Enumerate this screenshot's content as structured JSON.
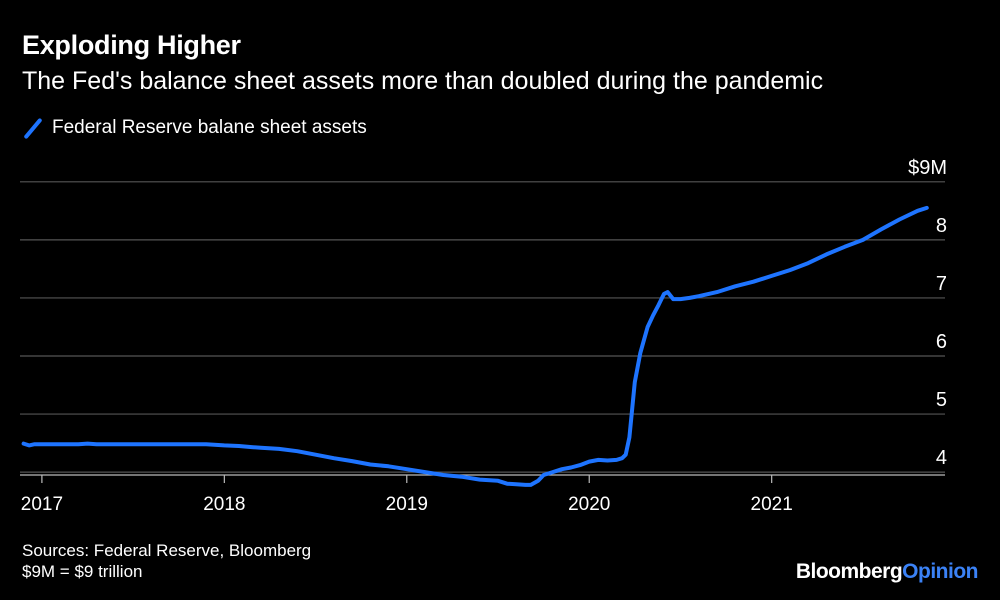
{
  "header": {
    "title": "Exploding Higher",
    "subtitle": "The Fed's balance sheet assets more than doubled during the pandemic"
  },
  "legend": {
    "label": "Federal Reserve balane sheet assets"
  },
  "footer": {
    "sources": "Sources: Federal Reserve, Bloomberg",
    "note": "$9M = $9 trillion"
  },
  "brand": {
    "name": "Bloomberg",
    "accent": "Opinion",
    "accent_color": "#3b82f6"
  },
  "colors": {
    "series": "#1e74ff",
    "grid": "#555555",
    "background": "#000000"
  },
  "chart_data": {
    "type": "line",
    "title": "Exploding Higher",
    "subtitle": "The Fed's balance sheet assets more than doubled during the pandemic",
    "xlabel": "",
    "ylabel": "",
    "xlim": [
      2016.88,
      2021.95
    ],
    "ylim": [
      3.95,
      9.1
    ],
    "x_ticks": [
      2017,
      2018,
      2019,
      2020,
      2021
    ],
    "x_tick_labels": [
      "2017",
      "2018",
      "2019",
      "2020",
      "2021"
    ],
    "y_ticks": [
      4,
      5,
      6,
      7,
      8,
      9
    ],
    "y_tick_labels": [
      "4",
      "5",
      "6",
      "7",
      "8",
      "$9M"
    ],
    "grid": "horizontal",
    "legend_position": "top-left",
    "series": [
      {
        "name": "Federal Reserve balane sheet assets",
        "x": [
          2016.9,
          2016.93,
          2016.96,
          2017.0,
          2017.1,
          2017.2,
          2017.25,
          2017.3,
          2017.4,
          2017.5,
          2017.6,
          2017.7,
          2017.8,
          2017.9,
          2018.0,
          2018.08,
          2018.15,
          2018.2,
          2018.3,
          2018.4,
          2018.5,
          2018.6,
          2018.7,
          2018.8,
          2018.9,
          2019.0,
          2019.1,
          2019.2,
          2019.3,
          2019.4,
          2019.5,
          2019.55,
          2019.6,
          2019.65,
          2019.68,
          2019.72,
          2019.75,
          2019.8,
          2019.85,
          2019.9,
          2019.95,
          2020.0,
          2020.05,
          2020.1,
          2020.15,
          2020.18,
          2020.2,
          2020.22,
          2020.25,
          2020.28,
          2020.32,
          2020.35,
          2020.38,
          2020.41,
          2020.43,
          2020.46,
          2020.5,
          2020.55,
          2020.6,
          2020.7,
          2020.8,
          2020.9,
          2021.0,
          2021.1,
          2021.2,
          2021.3,
          2021.4,
          2021.5,
          2021.6,
          2021.7,
          2021.8,
          2021.85
        ],
        "values": [
          4.49,
          4.46,
          4.48,
          4.48,
          4.48,
          4.48,
          4.49,
          4.48,
          4.48,
          4.48,
          4.48,
          4.48,
          4.48,
          4.48,
          4.46,
          4.45,
          4.43,
          4.42,
          4.4,
          4.36,
          4.3,
          4.24,
          4.19,
          4.13,
          4.1,
          4.05,
          4.0,
          3.95,
          3.92,
          3.87,
          3.85,
          3.8,
          3.79,
          3.78,
          3.78,
          3.85,
          3.95,
          4.0,
          4.05,
          4.08,
          4.12,
          4.18,
          4.21,
          4.2,
          4.21,
          4.24,
          4.3,
          4.6,
          5.55,
          6.05,
          6.5,
          6.7,
          6.88,
          7.07,
          7.1,
          6.98,
          6.98,
          7.0,
          7.03,
          7.1,
          7.2,
          7.28,
          7.38,
          7.48,
          7.6,
          7.75,
          7.88,
          8.0,
          8.18,
          8.35,
          8.5,
          8.55
        ]
      }
    ]
  }
}
